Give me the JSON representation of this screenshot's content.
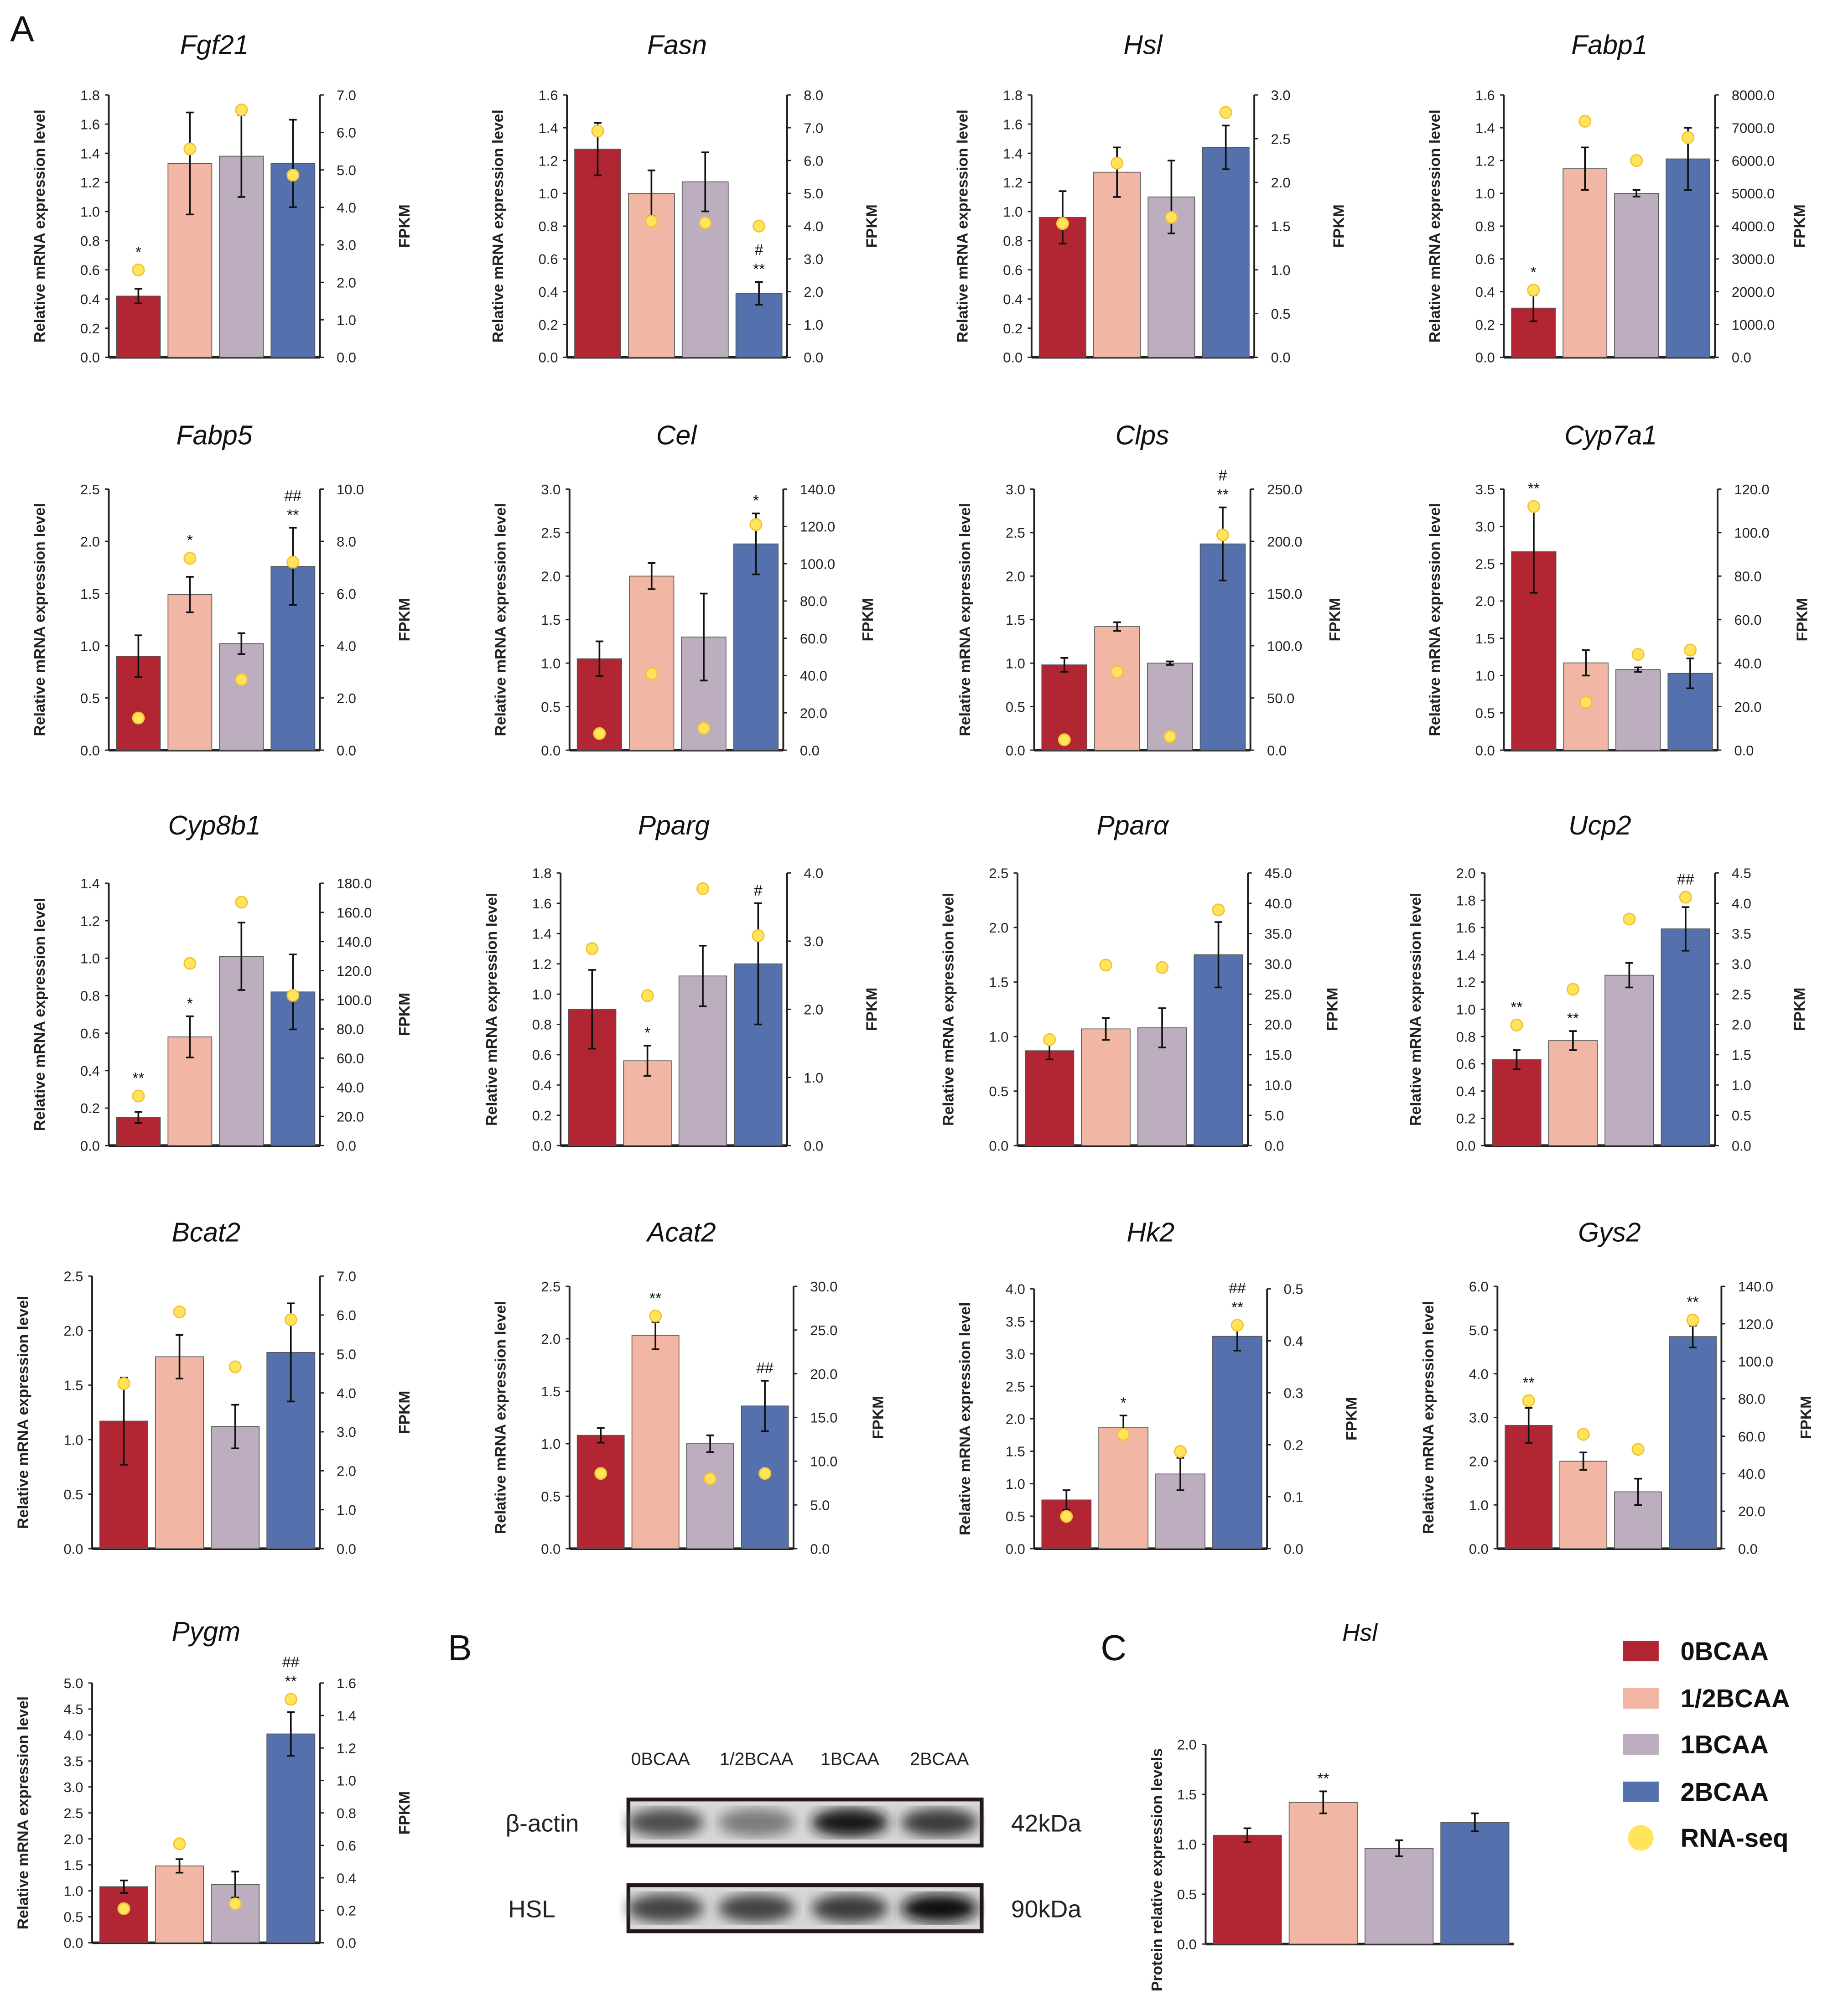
{
  "panel_labels": {
    "a": "A",
    "b": "B",
    "c": "C"
  },
  "colors": {
    "0BCAA": "#b22532",
    "1/2BCAA": "#f2b6a4",
    "1BCAA": "#bcaebf",
    "2BCAA": "#5571ad",
    "RNA-seq": "#ffe45c"
  },
  "legend": [
    "0BCAA",
    "1/2BCAA",
    "1BCAA",
    "2BCAA",
    "RNA-seq"
  ],
  "chart_data": [
    {
      "type": "bar",
      "title": "Fgf21",
      "ylabel": "Relative mRNA expression level",
      "y2label": "FPKM",
      "ylim": [
        0,
        1.8
      ],
      "ystep": 0.2,
      "y2lim": [
        0,
        7
      ],
      "y2step": 1,
      "ydec": 1,
      "y2dec": 1,
      "values": [
        0.42,
        1.33,
        1.38,
        1.33
      ],
      "errors": [
        0.05,
        0.35,
        0.28,
        0.3
      ],
      "rnaseq_fpkm": [
        2.33,
        5.56,
        6.6,
        4.86
      ],
      "sig": [
        [
          "*"
        ],
        [],
        [],
        []
      ]
    },
    {
      "type": "bar",
      "title": "Fasn",
      "ylabel": "Relative mRNA expression level",
      "y2label": "FPKM",
      "ylim": [
        0,
        1.6
      ],
      "ystep": 0.2,
      "y2lim": [
        0,
        8
      ],
      "y2step": 1,
      "ydec": 1,
      "y2dec": 1,
      "values": [
        1.27,
        1.0,
        1.07,
        0.39
      ],
      "errors": [
        0.16,
        0.14,
        0.18,
        0.07
      ],
      "rnaseq_fpkm": [
        6.9,
        4.15,
        4.1,
        4.0
      ],
      "sig": [
        [],
        [],
        [],
        [
          "#",
          "**"
        ]
      ]
    },
    {
      "type": "bar",
      "title": "Hsl",
      "ylabel": "Relative mRNA expression level",
      "y2label": "FPKM",
      "ylim": [
        0,
        1.8
      ],
      "ystep": 0.2,
      "y2lim": [
        0,
        3
      ],
      "y2step": 0.5,
      "ydec": 1,
      "y2dec": 1,
      "values": [
        0.96,
        1.27,
        1.1,
        1.44
      ],
      "errors": [
        0.18,
        0.17,
        0.25,
        0.15
      ],
      "rnaseq_fpkm": [
        1.53,
        2.22,
        1.6,
        2.8
      ],
      "sig": [
        [],
        [],
        [],
        []
      ]
    },
    {
      "type": "bar",
      "title": "Fabp1",
      "ylabel": "Relative mRNA expression level",
      "y2label": "FPKM",
      "ylim": [
        0,
        1.6
      ],
      "ystep": 0.2,
      "y2lim": [
        0,
        8000
      ],
      "y2step": 1000,
      "ydec": 1,
      "y2dec": 1,
      "values": [
        0.3,
        1.15,
        1.0,
        1.21
      ],
      "errors": [
        0.08,
        0.13,
        0.02,
        0.19
      ],
      "rnaseq_fpkm": [
        2050,
        7200,
        6000,
        6700
      ],
      "sig": [
        [
          "*"
        ],
        [],
        [],
        []
      ]
    },
    {
      "type": "bar",
      "title": "Fabp5",
      "ylabel": "Relative mRNA expression level",
      "y2label": "FPKM",
      "ylim": [
        0,
        2.5
      ],
      "ystep": 0.5,
      "y2lim": [
        0,
        10
      ],
      "y2step": 2,
      "ydec": 1,
      "y2dec": 1,
      "values": [
        0.9,
        1.49,
        1.02,
        1.76
      ],
      "errors": [
        0.2,
        0.17,
        0.1,
        0.37
      ],
      "rnaseq_fpkm": [
        1.23,
        7.35,
        2.7,
        7.2
      ],
      "sig": [
        [],
        [
          "*"
        ],
        [],
        [
          "##",
          "**"
        ]
      ]
    },
    {
      "type": "bar",
      "title": "Cel",
      "ylabel": "Relative mRNA expression level",
      "y2label": "FPKM",
      "ylim": [
        0,
        3.0
      ],
      "ystep": 0.5,
      "y2lim": [
        0,
        140
      ],
      "y2step": 20,
      "ydec": 1,
      "y2dec": 1,
      "values": [
        1.05,
        2.0,
        1.3,
        2.37
      ],
      "errors": [
        0.2,
        0.15,
        0.5,
        0.35
      ],
      "rnaseq_fpkm": [
        8.9,
        41,
        11.7,
        121
      ],
      "sig": [
        [],
        [],
        [],
        [
          "*"
        ]
      ]
    },
    {
      "type": "bar",
      "title": "Clps",
      "ylabel": "Relative mRNA expression level",
      "y2label": "FPKM",
      "ylim": [
        0,
        3.0
      ],
      "ystep": 0.5,
      "y2lim": [
        0,
        250
      ],
      "y2step": 50,
      "ydec": 1,
      "y2dec": 1,
      "values": [
        0.98,
        1.42,
        1.0,
        2.37
      ],
      "errors": [
        0.08,
        0.05,
        0.02,
        0.42
      ],
      "rnaseq_fpkm": [
        10,
        75,
        13,
        206
      ],
      "sig": [
        [],
        [],
        [],
        [
          "#",
          "**"
        ]
      ]
    },
    {
      "type": "bar",
      "title": "Cyp7a1",
      "ylabel": "Relative mRNA expression level",
      "y2label": "FPKM",
      "ylim": [
        0,
        3.5
      ],
      "ystep": 0.5,
      "y2lim": [
        0,
        120
      ],
      "y2step": 20,
      "ydec": 1,
      "y2dec": 1,
      "values": [
        2.66,
        1.17,
        1.08,
        1.03
      ],
      "errors": [
        0.55,
        0.17,
        0.03,
        0.2
      ],
      "rnaseq_fpkm": [
        112,
        22,
        44,
        46
      ],
      "sig": [
        [
          "**"
        ],
        [],
        [],
        []
      ]
    },
    {
      "type": "bar",
      "title": "Cyp8b1",
      "ylabel": "Relative mRNA expression level",
      "y2label": "FPKM",
      "ylim": [
        0,
        1.4
      ],
      "ystep": 0.2,
      "y2lim": [
        0,
        180
      ],
      "y2step": 20,
      "ydec": 1,
      "y2dec": 1,
      "values": [
        0.15,
        0.58,
        1.01,
        0.82
      ],
      "errors": [
        0.03,
        0.11,
        0.18,
        0.2
      ],
      "rnaseq_fpkm": [
        34,
        125,
        167,
        103
      ],
      "sig": [
        [
          "**"
        ],
        [
          "*"
        ],
        [],
        []
      ]
    },
    {
      "type": "bar",
      "title": "Pparg",
      "ylabel": "Relative mRNA expression level",
      "y2label": "FPKM",
      "ylim": [
        0,
        1.8
      ],
      "ystep": 0.2,
      "y2lim": [
        0,
        4
      ],
      "y2step": 1,
      "ydec": 1,
      "y2dec": 1,
      "values": [
        0.9,
        0.56,
        1.12,
        1.2
      ],
      "errors": [
        0.26,
        0.1,
        0.2,
        0.4
      ],
      "rnaseq_fpkm": [
        2.89,
        2.2,
        3.77,
        3.08
      ],
      "sig": [
        [],
        [
          "*"
        ],
        [],
        [
          "#"
        ]
      ]
    },
    {
      "type": "bar",
      "title": "Pparα",
      "ylabel": "Relative mRNA expression level",
      "y2label": "FPKM",
      "ylim": [
        0,
        2.5
      ],
      "ystep": 0.5,
      "y2lim": [
        0,
        45
      ],
      "y2step": 5,
      "ydec": 1,
      "y2dec": 1,
      "values": [
        0.87,
        1.07,
        1.08,
        1.75
      ],
      "errors": [
        0.08,
        0.1,
        0.18,
        0.3
      ],
      "rnaseq_fpkm": [
        17.5,
        29.8,
        29.4,
        38.9
      ],
      "sig": [
        [],
        [],
        [],
        []
      ]
    },
    {
      "type": "bar",
      "title": "Ucp2",
      "ylabel": "Relative mRNA expression level",
      "y2label": "FPKM",
      "ylim": [
        0,
        2.0
      ],
      "ystep": 0.2,
      "y2lim": [
        0,
        4.5
      ],
      "y2step": 0.5,
      "ydec": 1,
      "y2dec": 1,
      "values": [
        0.63,
        0.77,
        1.25,
        1.59
      ],
      "errors": [
        0.07,
        0.07,
        0.09,
        0.16
      ],
      "rnaseq_fpkm": [
        1.99,
        2.58,
        3.74,
        4.1
      ],
      "sig": [
        [
          "**"
        ],
        [
          "**"
        ],
        [],
        [
          "##"
        ]
      ]
    },
    {
      "type": "bar",
      "title": "Bcat2",
      "ylabel": "Relative mRNA expression level",
      "y2label": "FPKM",
      "ylim": [
        0,
        2.5
      ],
      "ystep": 0.5,
      "y2lim": [
        0,
        7
      ],
      "y2step": 1,
      "ydec": 1,
      "y2dec": 1,
      "values": [
        1.17,
        1.76,
        1.12,
        1.8
      ],
      "errors": [
        0.4,
        0.2,
        0.2,
        0.45
      ],
      "rnaseq_fpkm": [
        4.24,
        6.08,
        4.67,
        5.88
      ],
      "sig": [
        [],
        [],
        [],
        []
      ]
    },
    {
      "type": "bar",
      "title": "Acat2",
      "ylabel": "Relative mRNA expression level",
      "y2label": "FPKM",
      "ylim": [
        0,
        2.5
      ],
      "ystep": 0.5,
      "y2lim": [
        0,
        30
      ],
      "y2step": 5,
      "ydec": 1,
      "y2dec": 1,
      "values": [
        1.08,
        2.03,
        1.0,
        1.36
      ],
      "errors": [
        0.07,
        0.13,
        0.08,
        0.24
      ],
      "rnaseq_fpkm": [
        8.6,
        26.6,
        8.0,
        8.6
      ],
      "sig": [
        [],
        [
          "**"
        ],
        [],
        [
          "##"
        ]
      ]
    },
    {
      "type": "bar",
      "title": "Hk2",
      "ylabel": "Relative mRNA expression level",
      "y2label": "FPKM",
      "ylim": [
        0,
        4.0
      ],
      "ystep": 0.5,
      "y2lim": [
        0,
        0.5
      ],
      "y2step": 0.1,
      "ydec": 1,
      "y2dec": 1,
      "values": [
        0.75,
        1.87,
        1.15,
        3.27
      ],
      "errors": [
        0.15,
        0.18,
        0.25,
        0.22
      ],
      "rnaseq_fpkm": [
        0.062,
        0.22,
        0.187,
        0.43
      ],
      "sig": [
        [],
        [
          "*"
        ],
        [],
        [
          "##",
          "**"
        ]
      ]
    },
    {
      "type": "bar",
      "title": "Gys2",
      "ylabel": "Relative mRNA expression level",
      "y2label": "FPKM",
      "ylim": [
        0,
        6.0
      ],
      "ystep": 1,
      "y2lim": [
        0,
        140
      ],
      "y2step": 20,
      "ydec": 1,
      "y2dec": 1,
      "values": [
        2.82,
        2.0,
        1.3,
        4.85
      ],
      "errors": [
        0.4,
        0.2,
        0.3,
        0.25
      ],
      "rnaseq_fpkm": [
        79,
        61,
        53,
        122
      ],
      "sig": [
        [
          "**"
        ],
        [],
        [],
        [
          "**"
        ]
      ]
    },
    {
      "type": "bar",
      "title": "Pygm",
      "ylabel": "Relative mRNA expression level",
      "y2label": "FPKM",
      "ylim": [
        0,
        5.0
      ],
      "ystep": 0.5,
      "y2lim": [
        0,
        1.6
      ],
      "y2step": 0.2,
      "ydec": 1,
      "y2dec": 1,
      "values": [
        1.08,
        1.48,
        1.12,
        4.02
      ],
      "errors": [
        0.12,
        0.13,
        0.25,
        0.42
      ],
      "rnaseq_fpkm": [
        0.21,
        0.61,
        0.24,
        1.5
      ],
      "sig": [
        [],
        [],
        [],
        [
          "##",
          "**"
        ]
      ]
    },
    {
      "type": "bar",
      "title": "Hsl",
      "ylabel": "Protein relative expression levels",
      "ylim": [
        0,
        2.0
      ],
      "ystep": 0.5,
      "ydec": 1,
      "values": [
        1.09,
        1.42,
        0.96,
        1.22
      ],
      "errors": [
        0.07,
        0.11,
        0.08,
        0.09
      ],
      "sig": [
        [],
        [
          "**"
        ],
        [],
        []
      ]
    }
  ],
  "western_blot": {
    "lanes": [
      "0BCAA",
      "1/2BCAA",
      "1BCAA",
      "2BCAA"
    ],
    "rows": [
      {
        "protein": "β-actin",
        "size": "42kDa",
        "band_intensity": [
          0.65,
          0.4,
          0.95,
          0.75
        ]
      },
      {
        "protein": "HSL",
        "size": "90kDa",
        "band_intensity": [
          0.7,
          0.7,
          0.75,
          1.0
        ]
      }
    ]
  }
}
